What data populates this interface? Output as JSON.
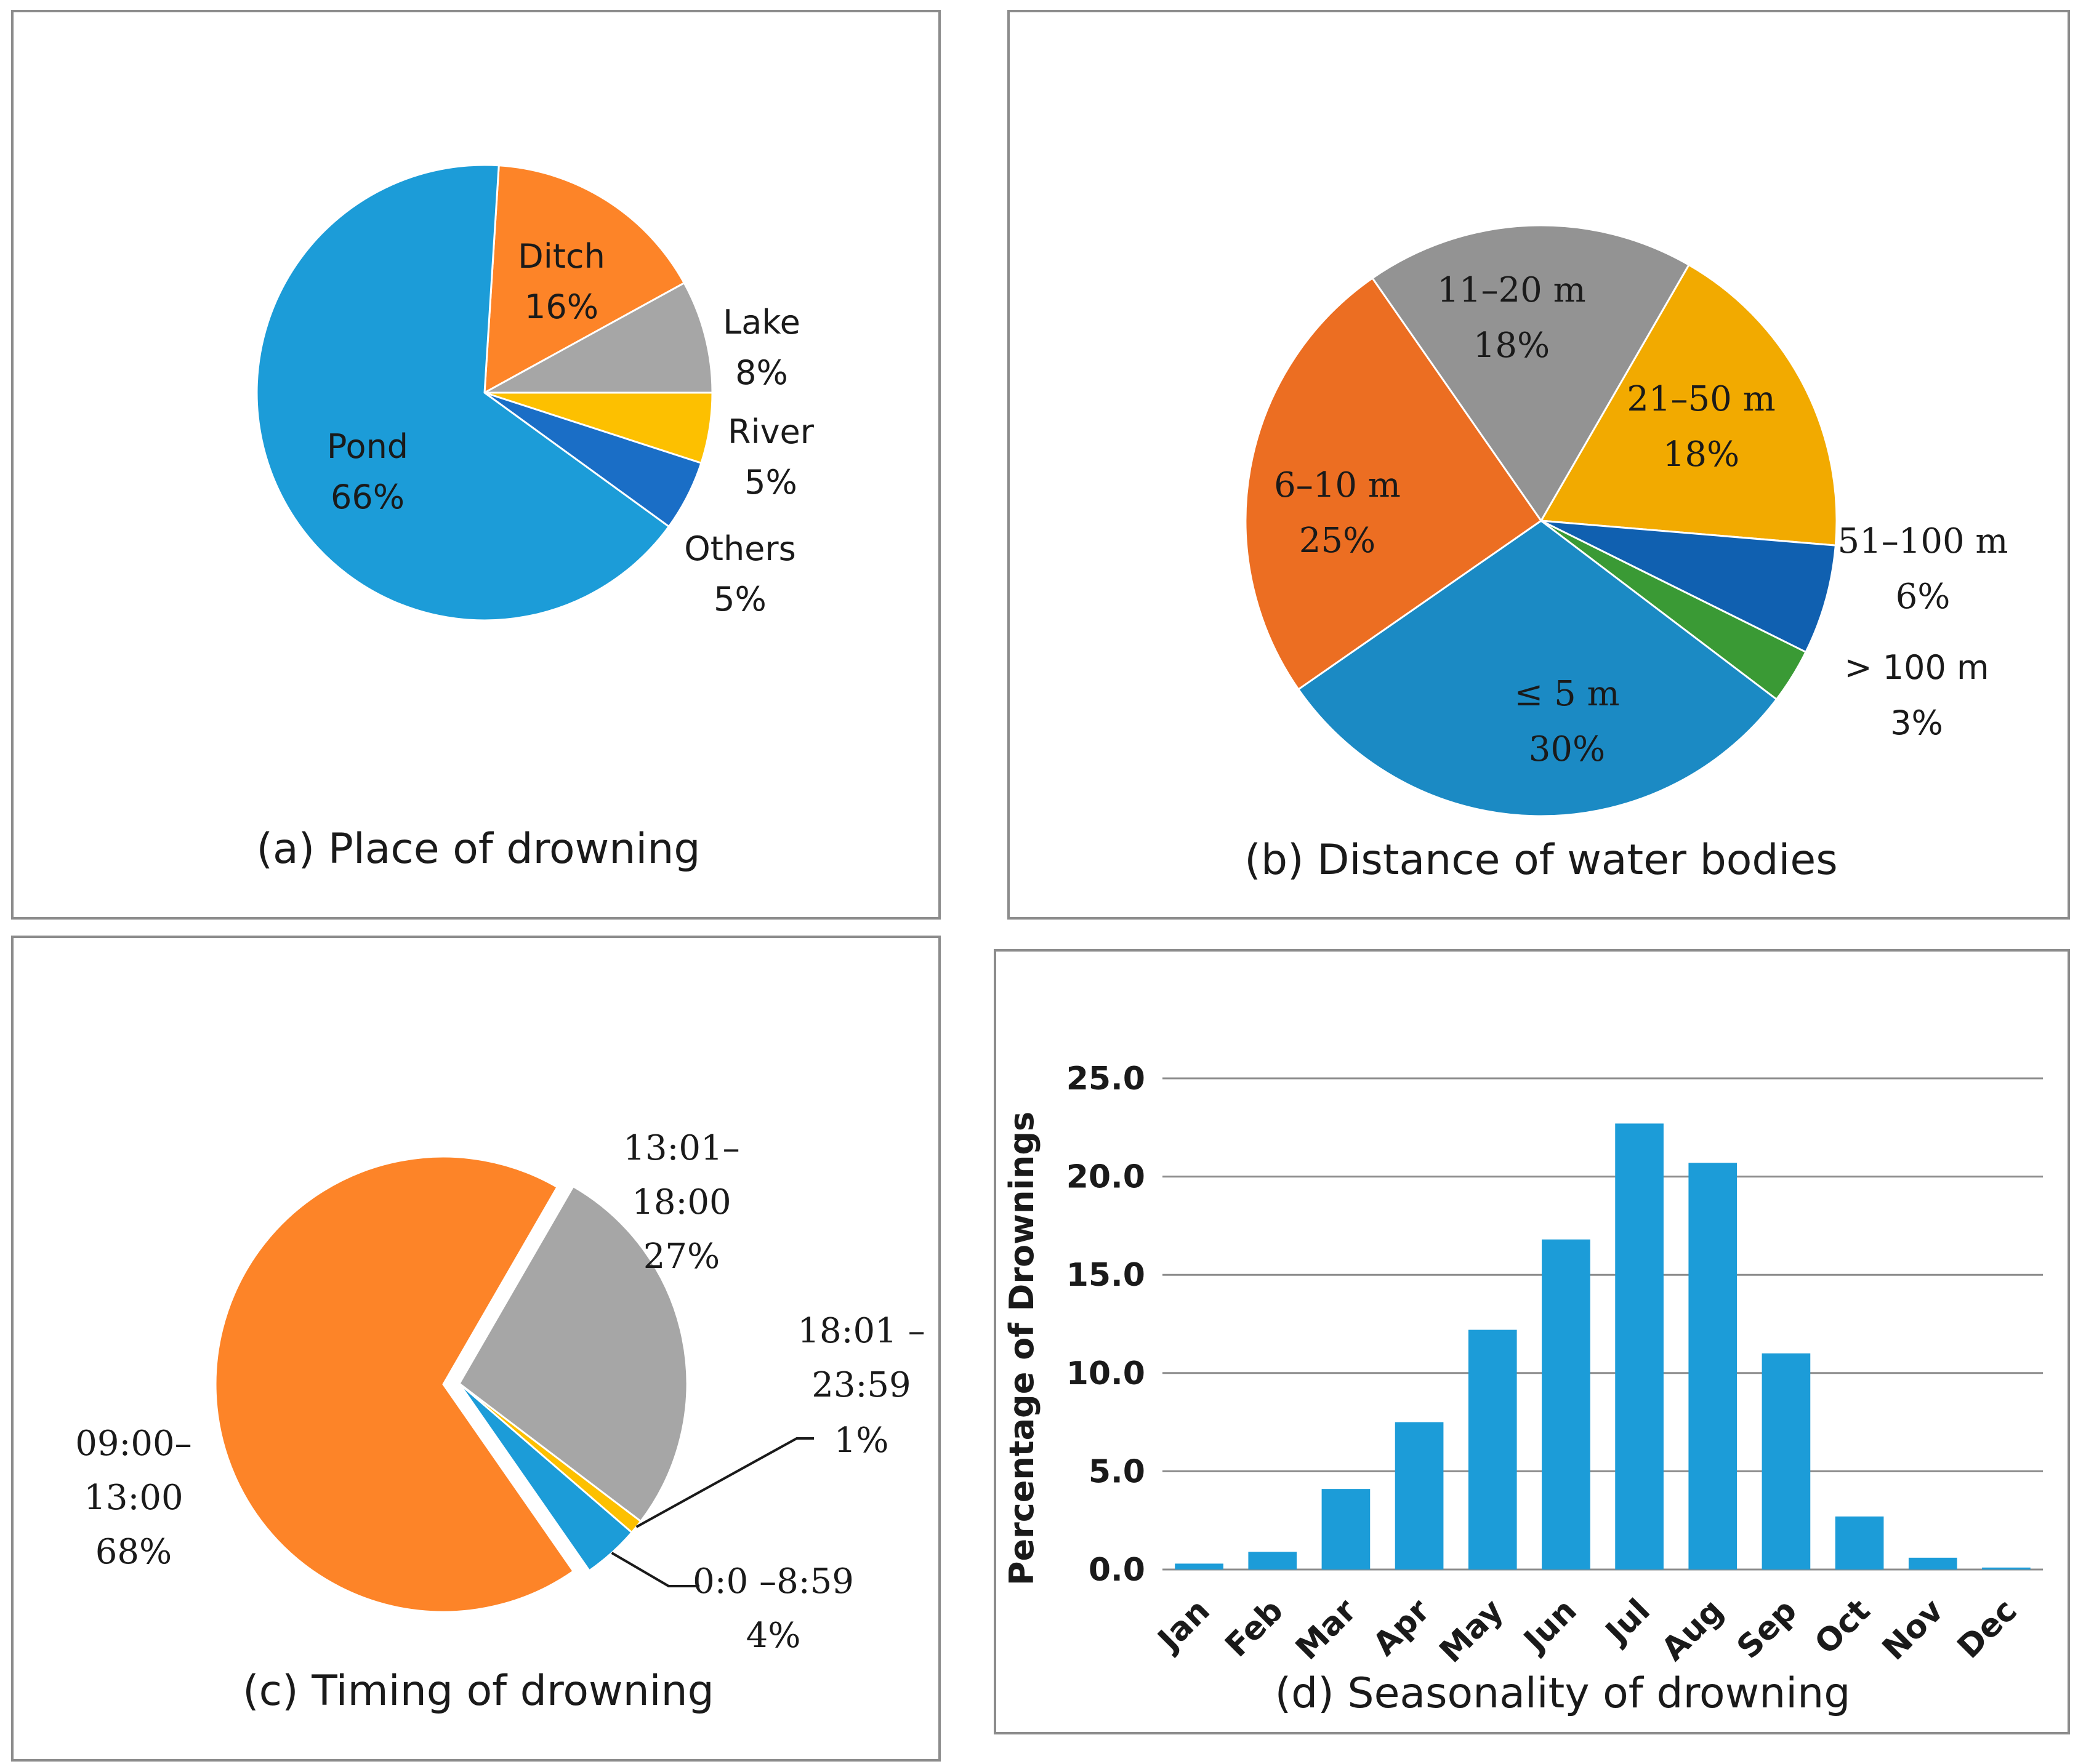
{
  "chart_data": [
    {
      "type": "pie",
      "title": "(a) Place of drowning",
      "slices": [
        {
          "name": "Ditch",
          "label": "16%",
          "value": 16,
          "color": "#fd8428"
        },
        {
          "name": "Lake",
          "label": "8%",
          "value": 8,
          "color": "#a6a6a6"
        },
        {
          "name": "River",
          "label": "5%",
          "value": 5,
          "color": "#fdc000"
        },
        {
          "name": "Others",
          "label": "5%",
          "value": 5,
          "color": "#1a6ec6"
        },
        {
          "name": "Pond",
          "label": "66%",
          "value": 66,
          "color": "#1c9cd8"
        }
      ]
    },
    {
      "type": "pie",
      "title": "(b) Distance of water bodies",
      "slices": [
        {
          "name": "21–50 m",
          "label": "18%",
          "value": 18,
          "color": "#f2aa00"
        },
        {
          "name": "51–100 m",
          "label": "6%",
          "value": 6,
          "color": "#1060b0"
        },
        {
          "name": "> 100 m",
          "label": "3%",
          "value": 3,
          "color": "#3a9a35"
        },
        {
          "name": "≤ 5 m",
          "label": "30%",
          "value": 30,
          "color": "#1b8ac4"
        },
        {
          "name": "6–10 m",
          "label": "25%",
          "value": 25,
          "color": "#ec6e22"
        },
        {
          "name": "11–20 m",
          "label": "18%",
          "value": 18,
          "color": "#939393"
        }
      ]
    },
    {
      "type": "pie",
      "title": "(c) Timing of drowning",
      "slices": [
        {
          "name_lines": [
            "13:01–",
            "18:00"
          ],
          "label": "27%",
          "value": 27,
          "color": "#a6a6a6"
        },
        {
          "name_lines": [
            "18:01 –",
            "23:59"
          ],
          "label": "1%",
          "value": 1,
          "color": "#fdc000"
        },
        {
          "name_lines": [
            "0:0 –8:59"
          ],
          "label": "4%",
          "value": 4,
          "color": "#1c9cd8"
        },
        {
          "name_lines": [
            "09:00–",
            "13:00"
          ],
          "label": "68%",
          "value": 68,
          "color": "#fd8428"
        }
      ]
    },
    {
      "type": "bar",
      "title": "(d) Seasonality of drowning",
      "xlabel": "",
      "ylabel": "Percentage of Drownings",
      "ylim": [
        0,
        25
      ],
      "yticks": [
        "0.0",
        "5.0",
        "10.0",
        "15.0",
        "20.0",
        "25.0"
      ],
      "grid": true,
      "color": "#1c9cd8",
      "categories": [
        "Jan",
        "Feb",
        "Mar",
        "Apr",
        "May",
        "Jun",
        "Jul",
        "Aug",
        "Sep",
        "Oct",
        "Nov",
        "Dec"
      ],
      "values": [
        0.3,
        0.9,
        4.1,
        7.5,
        12.2,
        16.8,
        22.7,
        20.7,
        11.0,
        2.7,
        0.6,
        0.1
      ]
    }
  ]
}
